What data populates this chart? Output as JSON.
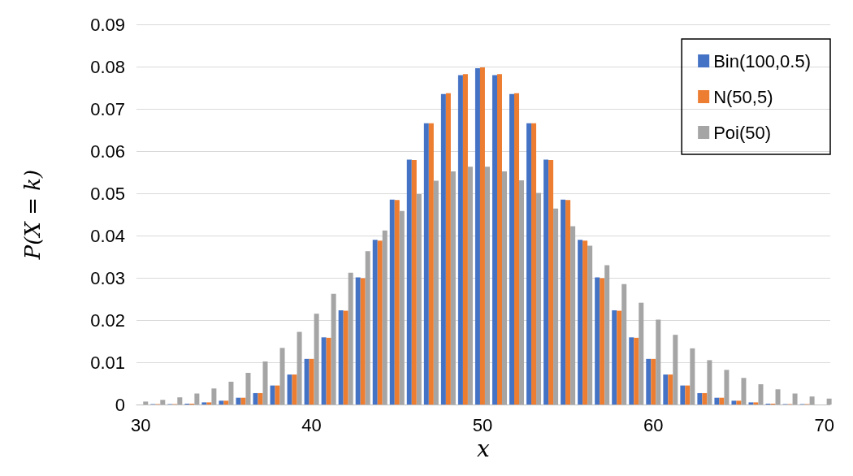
{
  "chart_data": {
    "type": "bar",
    "xlabel": "x",
    "ylabel": "P(X = k)",
    "x": [
      30,
      31,
      32,
      33,
      34,
      35,
      36,
      37,
      38,
      39,
      40,
      41,
      42,
      43,
      44,
      45,
      46,
      47,
      48,
      49,
      50,
      51,
      52,
      53,
      54,
      55,
      56,
      57,
      58,
      59,
      60,
      61,
      62,
      63,
      64,
      65,
      66,
      67,
      68,
      69,
      70
    ],
    "series": [
      {
        "name": "Bin(100,0.5)",
        "color": "#4472c4",
        "values": [
          0.0,
          0.0001,
          0.0001,
          0.0002,
          0.0005,
          0.0009,
          0.0016,
          0.0027,
          0.0045,
          0.0071,
          0.0108,
          0.0159,
          0.0223,
          0.0301,
          0.039,
          0.0485,
          0.058,
          0.0666,
          0.0735,
          0.078,
          0.0796,
          0.078,
          0.0735,
          0.0666,
          0.058,
          0.0485,
          0.039,
          0.0301,
          0.0223,
          0.0159,
          0.0108,
          0.0071,
          0.0045,
          0.0027,
          0.0016,
          0.0009,
          0.0005,
          0.0002,
          0.0001,
          0.0001,
          0.0
        ]
      },
      {
        "name": "N(50,5)",
        "color": "#ed7d31",
        "values": [
          0.0,
          0.0001,
          0.0001,
          0.0002,
          0.0005,
          0.0009,
          0.0016,
          0.0027,
          0.0045,
          0.0071,
          0.0108,
          0.0158,
          0.0222,
          0.0299,
          0.0388,
          0.0484,
          0.0579,
          0.0666,
          0.0737,
          0.0782,
          0.0798,
          0.0782,
          0.0737,
          0.0666,
          0.0579,
          0.0484,
          0.0388,
          0.0299,
          0.0222,
          0.0158,
          0.0108,
          0.0071,
          0.0045,
          0.0027,
          0.0016,
          0.0009,
          0.0005,
          0.0002,
          0.0001,
          0.0001,
          0.0
        ]
      },
      {
        "name": "Poi(50)",
        "color": "#a5a5a5",
        "values": [
          0.0007,
          0.0011,
          0.0017,
          0.0026,
          0.0038,
          0.0054,
          0.0075,
          0.0102,
          0.0134,
          0.0172,
          0.0215,
          0.0262,
          0.0312,
          0.0363,
          0.0412,
          0.0458,
          0.0498,
          0.053,
          0.0552,
          0.0563,
          0.0563,
          0.0552,
          0.0531,
          0.0501,
          0.0464,
          0.0422,
          0.0376,
          0.033,
          0.0285,
          0.0241,
          0.0201,
          0.0165,
          0.0133,
          0.0105,
          0.0082,
          0.0063,
          0.0048,
          0.0036,
          0.0026,
          0.0019,
          0.0014
        ]
      }
    ],
    "xlim": [
      29.75,
      70.35
    ],
    "xticks": [
      30,
      40,
      50,
      60,
      70
    ],
    "ylim": [
      0,
      0.09
    ],
    "yticks": [
      0,
      0.01,
      0.02,
      0.03,
      0.04,
      0.05,
      0.06,
      0.07,
      0.08,
      0.09
    ],
    "grid": "y",
    "legend": "top right"
  }
}
